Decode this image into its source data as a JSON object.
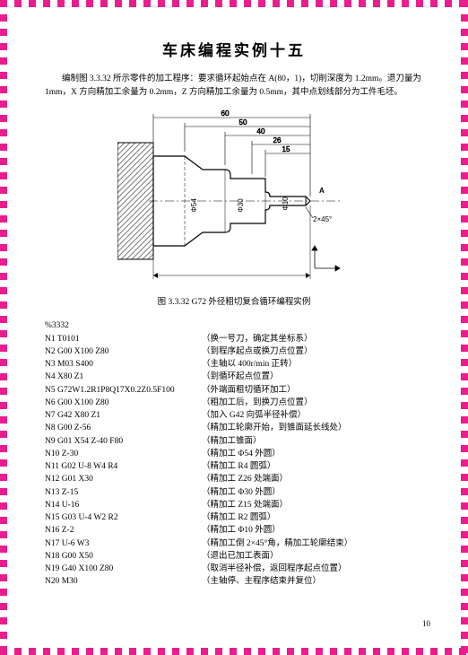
{
  "title": "车床编程实例十五",
  "intro": "编制图 3.3.32 所示零件的加工程序：要求循环起始点在 A(80，1)，切削深度为 1.2mm。退刀量为 1mm，X 方向精加工余量为 0.2mm，Z 方向精加工余量为 0.5mm，其中点划线部分为工件毛坯。",
  "figure": {
    "caption": "图 3.3.32   G72 外径粗切复合循环编程实例",
    "dims": {
      "d60": "60",
      "d50": "50",
      "d40": "40",
      "d26": "26",
      "d15": "15",
      "phi54": "Φ54",
      "phi30": "Φ30",
      "phi10": "Φ10",
      "chamfer": "2×45°",
      "pointA": "A"
    }
  },
  "program_header": "%3332",
  "code": [
    {
      "l": "N1 T0101",
      "r": "（换一号刀，确定其坐标系）"
    },
    {
      "l": "N2 G00 X100 Z80",
      "r": "（到程序起点或换刀点位置）"
    },
    {
      "l": "N3 M03 S400",
      "r": "（主轴以 400r/min 正转）"
    },
    {
      "l": "N4 X80 Z1",
      "r": "（到循环起点位置）"
    },
    {
      "l": "N5 G72W1.2R1P8Q17X0.2Z0.5F100",
      "r": "（外端面粗切循环加工）"
    },
    {
      "l": "N6 G00 X100 Z80",
      "r": "（粗加工后，到换刀点位置）"
    },
    {
      "l": "N7 G42 X80 Z1",
      "r": "（加入 G42 向弧半径补偿）"
    },
    {
      "l": "N8 G00 Z-56",
      "r": "（精加工轮廓开始，到锥面延长线处）"
    },
    {
      "l": "N9 G01 X54 Z-40 F80",
      "r": "（精加工锥面）"
    },
    {
      "l": "N10 Z-30",
      "r": "（精加工 Φ54 外圆）"
    },
    {
      "l": "N11 G02 U-8 W4 R4",
      "r": "（精加工 R4 圆弧）"
    },
    {
      "l": "N12 G01 X30",
      "r": "（精加工 Z26 处端面）"
    },
    {
      "l": "N13 Z-15",
      "r": "（精加工 Φ30 外圆）"
    },
    {
      "l": "N14 U-16",
      "r": "（精加工 Z15 处端面）"
    },
    {
      "l": "N15 G03 U-4 W2 R2",
      "r": "（精加工 R2 圆弧）"
    },
    {
      "l": "N16 Z-2",
      "r": "（精加工 Φ10 外圆）"
    },
    {
      "l": "N17 U-6 W3",
      "r": "（精加工倒 2×45°角，精加工轮廓结束）"
    },
    {
      "l": "N18 G00 X50",
      "r": "（退出已加工表面）"
    },
    {
      "l": "N19 G40 X100 Z80",
      "r": "（取消半径补偿，返回程序起点位置）"
    },
    {
      "l": "N20 M30",
      "r": "（主轴停、主程序结束并复位）"
    }
  ],
  "page_number": "10",
  "colors": {
    "border": "#e91e8c",
    "text": "#000000",
    "bg": "#ffffff",
    "hatch": "#7a7a7a",
    "line": "#000000"
  }
}
